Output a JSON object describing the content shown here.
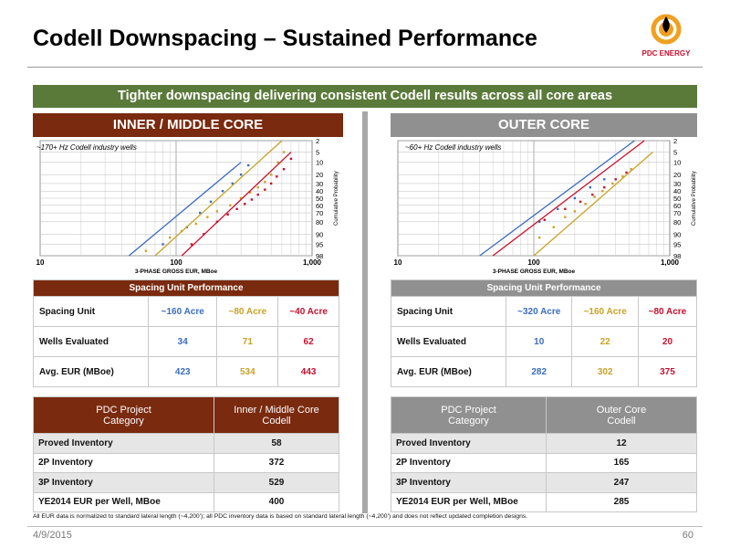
{
  "title": "Codell Downspacing – Sustained Performance",
  "logo_text": "PDC ENERGY",
  "banner": "Tighter downspacing delivering consistent Codell results across all core areas",
  "inner": {
    "header": "INNER / MIDDLE CORE",
    "note": "~170+ Hz Codell industry wells",
    "sp_title": "Spacing Unit Performance",
    "rows": [
      {
        "label": "Spacing Unit",
        "v": [
          "~160 Acre",
          "~80 Acre",
          "~40 Acre"
        ]
      },
      {
        "label": "Wells Evaluated",
        "v": [
          "34",
          "71",
          "62"
        ]
      },
      {
        "label": "Avg. EUR  (MBoe)",
        "v": [
          "423",
          "534",
          "443"
        ]
      }
    ],
    "pc_h1": "PDC Project\nCategory",
    "pc_h2": "Inner / Middle Core\nCodell",
    "pc_rows": [
      {
        "label": "Proved Inventory",
        "v": "58"
      },
      {
        "label": "2P Inventory",
        "v": "372"
      },
      {
        "label": "3P Inventory",
        "v": "529"
      },
      {
        "label": "YE2014 EUR per Well, MBoe",
        "v": "400"
      }
    ]
  },
  "outer": {
    "header": "OUTER CORE",
    "note": "~60+ Hz Codell industry wells",
    "sp_title": "Spacing Unit Performance",
    "rows": [
      {
        "label": "Spacing Unit",
        "v": [
          "~320 Acre",
          "~160 Acre",
          "~80 Acre"
        ]
      },
      {
        "label": "Wells Evaluated",
        "v": [
          "10",
          "22",
          "20"
        ]
      },
      {
        "label": "Avg. EUR  (MBoe)",
        "v": [
          "282",
          "302",
          "375"
        ]
      }
    ],
    "pc_h1": "PDC Project\nCategory",
    "pc_h2": "Outer Core\nCodell",
    "pc_rows": [
      {
        "label": "Proved Inventory",
        "v": "12"
      },
      {
        "label": "2P Inventory",
        "v": "165"
      },
      {
        "label": "3P Inventory",
        "v": "247"
      },
      {
        "label": "YE2014 EUR per Well, MBoe",
        "v": "285"
      }
    ]
  },
  "footnote": "All EUR data is normalized to standard lateral length (~4,200'); all PDC inventory data is based on standard lateral length (~4,200') and does not reflect updated completion designs.",
  "date": "4/9/2015",
  "page": "60",
  "colors": {
    "blue": "#3a6cc0",
    "gold": "#c9a227",
    "red": "#c8102e",
    "brown": "#7a2a0e",
    "green": "#5a7a3a",
    "grey": "#909090"
  },
  "chart_data": [
    {
      "type": "scatter",
      "xscale": "log",
      "xlim": [
        10,
        1000
      ],
      "xlabel": "3-PHASE GROSS EUR, MBoe",
      "ylabel": "Cumulative Probability",
      "xticks": [
        "10",
        "100",
        "1,000"
      ],
      "yticks": [
        "2",
        "5",
        "10",
        "20",
        "30",
        "40",
        "50",
        "60",
        "70",
        "80",
        "90",
        "95",
        "98"
      ],
      "series": [
        {
          "color": "#3a6cc0",
          "fit": [
            [
              45,
              98
            ],
            [
              300,
              10
            ]
          ],
          "points": [
            [
              80,
              95
            ],
            [
              120,
              85
            ],
            [
              150,
              70
            ],
            [
              180,
              55
            ],
            [
              220,
              40
            ],
            [
              260,
              30
            ],
            [
              300,
              20
            ],
            [
              340,
              12
            ]
          ]
        },
        {
          "color": "#c9a227",
          "fit": [
            [
              70,
              98
            ],
            [
              600,
              2
            ]
          ],
          "points": [
            [
              60,
              97
            ],
            [
              90,
              92
            ],
            [
              110,
              88
            ],
            [
              140,
              82
            ],
            [
              170,
              75
            ],
            [
              200,
              68
            ],
            [
              250,
              60
            ],
            [
              300,
              50
            ],
            [
              350,
              42
            ],
            [
              400,
              35
            ],
            [
              450,
              28
            ],
            [
              500,
              20
            ],
            [
              560,
              10
            ],
            [
              620,
              5
            ]
          ]
        },
        {
          "color": "#c8102e",
          "fit": [
            [
              110,
              98
            ],
            [
              700,
              5
            ]
          ],
          "points": [
            [
              130,
              95
            ],
            [
              160,
              90
            ],
            [
              200,
              80
            ],
            [
              240,
              72
            ],
            [
              280,
              65
            ],
            [
              320,
              58
            ],
            [
              360,
              52
            ],
            [
              400,
              45
            ],
            [
              450,
              38
            ],
            [
              500,
              30
            ],
            [
              550,
              22
            ],
            [
              620,
              15
            ],
            [
              700,
              8
            ]
          ]
        }
      ]
    },
    {
      "type": "scatter",
      "xscale": "log",
      "xlim": [
        10,
        1000
      ],
      "xlabel": "3-PHASE GROSS EUR, MBoe",
      "ylabel": "Cumulative Probability",
      "xticks": [
        "10",
        "100",
        "1,000"
      ],
      "yticks": [
        "2",
        "5",
        "10",
        "20",
        "30",
        "40",
        "50",
        "60",
        "70",
        "80",
        "90",
        "95",
        "98"
      ],
      "series": [
        {
          "color": "#3a6cc0",
          "fit": [
            [
              40,
              98
            ],
            [
              550,
              2
            ]
          ],
          "points": [
            [
              110,
              80
            ],
            [
              150,
              65
            ],
            [
              200,
              50
            ],
            [
              260,
              35
            ],
            [
              330,
              25
            ]
          ]
        },
        {
          "color": "#c9a227",
          "fit": [
            [
              100,
              98
            ],
            [
              750,
              5
            ]
          ],
          "points": [
            [
              110,
              92
            ],
            [
              140,
              85
            ],
            [
              170,
              75
            ],
            [
              200,
              68
            ],
            [
              240,
              58
            ],
            [
              280,
              48
            ],
            [
              320,
              40
            ],
            [
              380,
              30
            ],
            [
              450,
              22
            ],
            [
              520,
              15
            ]
          ]
        },
        {
          "color": "#c8102e",
          "fit": [
            [
              50,
              98
            ],
            [
              650,
              2
            ]
          ],
          "points": [
            [
              120,
              78
            ],
            [
              170,
              65
            ],
            [
              220,
              55
            ],
            [
              270,
              45
            ],
            [
              330,
              35
            ],
            [
              400,
              25
            ],
            [
              480,
              18
            ]
          ]
        }
      ]
    }
  ]
}
